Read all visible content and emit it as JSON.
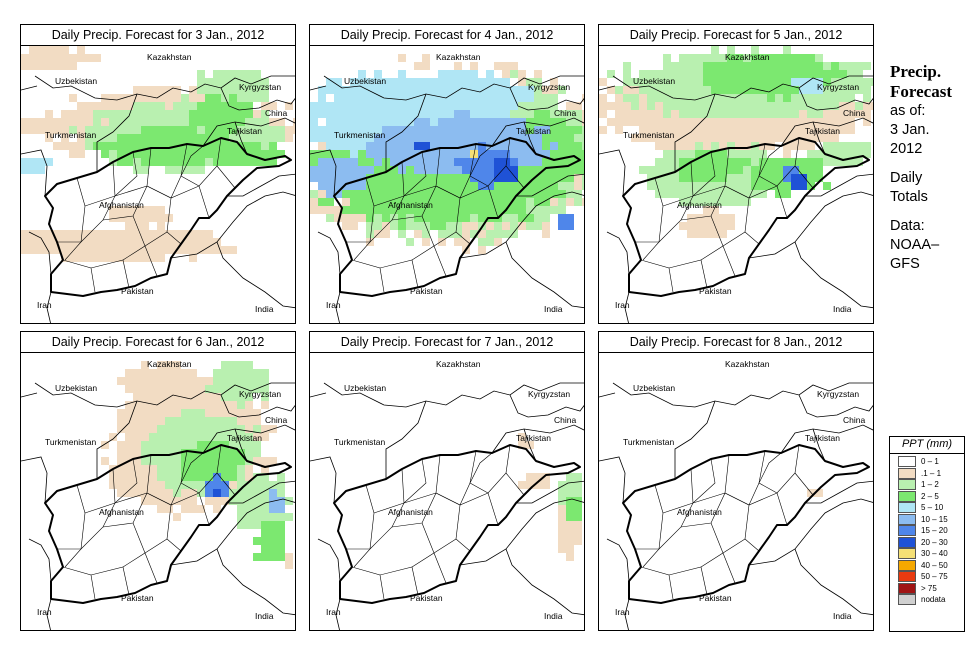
{
  "panels": [
    {
      "title": "Daily Precip. Forecast for  3 Jan., 2012",
      "pattern": "p1"
    },
    {
      "title": "Daily Precip. Forecast for  4 Jan., 2012",
      "pattern": "p2"
    },
    {
      "title": "Daily Precip. Forecast for  5 Jan., 2012",
      "pattern": "p3"
    },
    {
      "title": "Daily Precip. Forecast for  6 Jan., 2012",
      "pattern": "p4"
    },
    {
      "title": "Daily Precip. Forecast for  7 Jan., 2012",
      "pattern": "p5"
    },
    {
      "title": "Daily Precip. Forecast for  8 Jan., 2012",
      "pattern": "p6"
    }
  ],
  "map_labels": {
    "uzbekistan": "Uzbekistan",
    "kazakhstan": "Kazakhstan",
    "kyrgyzstan": "Kyrgyzstan",
    "china": "China",
    "turkmenistan": "Turkmenistan",
    "tajikistan": "Tajikistan",
    "afghanistan": "Afghanistan",
    "iran": "Iran",
    "pakistan": "Pakistan",
    "india": "India"
  },
  "side_info": {
    "heading_line1": "Precip.",
    "heading_line2": "Forecast",
    "as_of": "as of:",
    "date_line1": "3 Jan.",
    "date_line2": "2012",
    "totals_line1": "Daily",
    "totals_line2": "Totals",
    "data_line1": "Data:",
    "data_line2": "NOAA–",
    "data_line3": "GFS"
  },
  "legend": {
    "title": "PPT (mm)",
    "items": [
      {
        "label": "0 – 1",
        "color": "#ffffff"
      },
      {
        "label": ".1 – 1",
        "color": "#f2dcc3"
      },
      {
        "label": "1 – 2",
        "color": "#b9f0b0"
      },
      {
        "label": "2 – 5",
        "color": "#7ce870"
      },
      {
        "label": "5 – 10",
        "color": "#b0e6f5"
      },
      {
        "label": "10 – 15",
        "color": "#8cbcf0"
      },
      {
        "label": "15 – 20",
        "color": "#4f86ea"
      },
      {
        "label": "20 – 30",
        "color": "#1f52d6"
      },
      {
        "label": "30 – 40",
        "color": "#f5e075"
      },
      {
        "label": "40 – 50",
        "color": "#f5a800"
      },
      {
        "label": "50 – 75",
        "color": "#e83a10"
      },
      {
        "label": "> 75",
        "color": "#a01414"
      },
      {
        "label": "nodata",
        "color": "#d0d0d0"
      }
    ]
  }
}
